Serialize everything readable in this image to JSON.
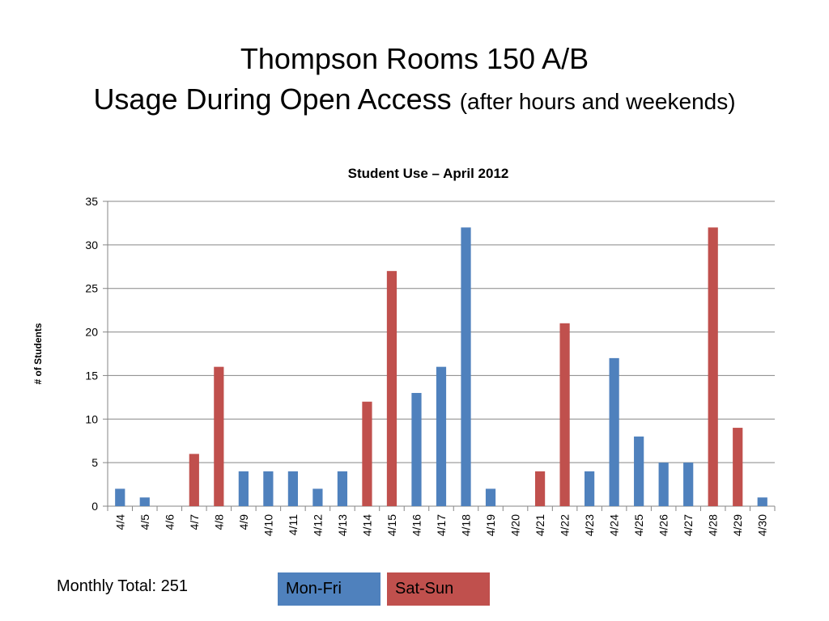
{
  "slide": {
    "title_line1": "Thompson Rooms 150 A/B",
    "title_line2_main": "Usage During Open Access",
    "title_line2_sub": "(after hours and weekends)",
    "monthly_total": "Monthly Total: 251"
  },
  "legend": [
    {
      "label": "Mon-Fri",
      "color": "#4f81bd"
    },
    {
      "label": "Sat-Sun",
      "color": "#c0504d"
    }
  ],
  "chart_data": {
    "type": "bar",
    "title": "Student Use – April 2012",
    "ylabel": "# of Students",
    "xlabel": "",
    "ylim": [
      0,
      35
    ],
    "yticks": [
      0,
      5,
      10,
      15,
      20,
      25,
      30,
      35
    ],
    "grid": true,
    "categories": [
      "4/4",
      "4/5",
      "4/6",
      "4/7",
      "4/8",
      "4/9",
      "4/10",
      "4/11",
      "4/12",
      "4/13",
      "4/14",
      "4/15",
      "4/16",
      "4/17",
      "4/18",
      "4/19",
      "4/20",
      "4/21",
      "4/22",
      "4/23",
      "4/24",
      "4/25",
      "4/26",
      "4/27",
      "4/28",
      "4/29",
      "4/30"
    ],
    "values": [
      2,
      1,
      0,
      6,
      16,
      4,
      4,
      4,
      2,
      4,
      12,
      27,
      13,
      16,
      32,
      2,
      0,
      4,
      21,
      4,
      17,
      8,
      5,
      5,
      32,
      9,
      1
    ],
    "groups": [
      "Mon-Fri",
      "Mon-Fri",
      "Mon-Fri",
      "Sat-Sun",
      "Sat-Sun",
      "Mon-Fri",
      "Mon-Fri",
      "Mon-Fri",
      "Mon-Fri",
      "Mon-Fri",
      "Sat-Sun",
      "Sat-Sun",
      "Mon-Fri",
      "Mon-Fri",
      "Mon-Fri",
      "Mon-Fri",
      "Mon-Fri",
      "Sat-Sun",
      "Sat-Sun",
      "Mon-Fri",
      "Mon-Fri",
      "Mon-Fri",
      "Mon-Fri",
      "Mon-Fri",
      "Sat-Sun",
      "Sat-Sun",
      "Mon-Fri"
    ]
  }
}
